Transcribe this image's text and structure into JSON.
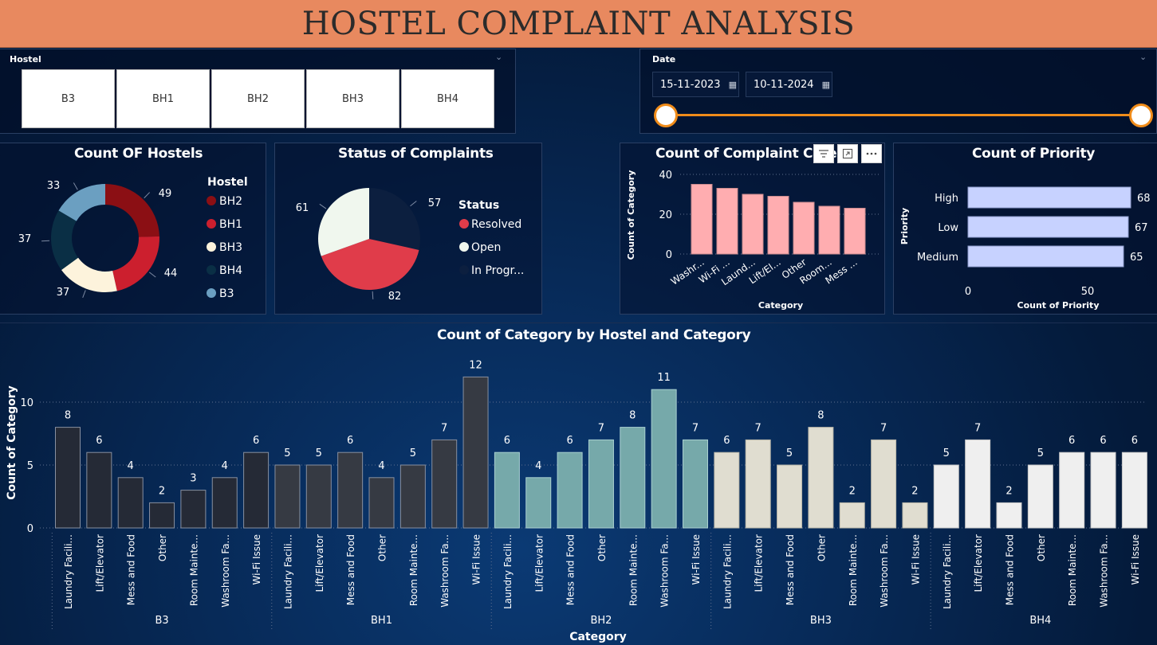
{
  "banner": {
    "title": "HOSTEL COMPLAINT ANALYSIS"
  },
  "hostel_slicer": {
    "title": "Hostel",
    "items": [
      "B3",
      "BH1",
      "BH2",
      "BH3",
      "BH4"
    ]
  },
  "date_slicer": {
    "title": "Date",
    "start": "15-11-2023",
    "end": "10-11-2024"
  },
  "colors": {
    "B3": "#6b9fc1",
    "BH2": "#8b0f14",
    "BH1": "#cc1f2e",
    "BH3": "#fdf3dc",
    "BH4": "#0a2f45",
    "resolved": "#e03c4a",
    "open": "#f0f7ee",
    "in_progress": "#0c1f3f",
    "category_bar": "#ffadb0",
    "priority_bar": "#c7d2ff",
    "bar_b3": "#252a36",
    "bar_bh1": "#363a43",
    "bar_bh2": "#76a9aa",
    "bar_bh3": "#e0ddd0",
    "bar_bh4": "#efefef",
    "accent": "#f08c1a"
  },
  "chart_data": [
    {
      "id": "count_of_hostels",
      "type": "pie",
      "variant": "donut",
      "title": "Count OF Hostels",
      "legend_title": "Hostel",
      "legend_position": "right",
      "slices": [
        {
          "label": "BH2",
          "value": 49
        },
        {
          "label": "BH1",
          "value": 44
        },
        {
          "label": "BH3",
          "value": 37
        },
        {
          "label": "BH4",
          "value": 37
        },
        {
          "label": "B3",
          "value": 33
        }
      ]
    },
    {
      "id": "status_of_complaints",
      "type": "pie",
      "title": "Status of Complaints",
      "legend_title": "Status",
      "legend_position": "right",
      "slices": [
        {
          "label": "Resolved",
          "value": 82
        },
        {
          "label": "Open",
          "value": 61
        },
        {
          "label": "In Progr...",
          "value": 57
        }
      ]
    },
    {
      "id": "count_of_complaint_category",
      "type": "bar",
      "title": "Count of Complaint Cate",
      "xlabel": "Category",
      "ylabel": "Count of Category",
      "ylim": [
        0,
        40
      ],
      "yticks": [
        0,
        20,
        40
      ],
      "grid": true,
      "categories": [
        "Washr...",
        "Wi-Fi ...",
        "Laund...",
        "Lift/El...",
        "Other",
        "Room...",
        "Mess ..."
      ],
      "values": [
        35,
        33,
        30,
        29,
        26,
        24,
        23
      ]
    },
    {
      "id": "count_of_priority",
      "type": "bar",
      "orientation": "horizontal",
      "title": "Count of Priority",
      "xlabel": "Count of Priority",
      "ylabel": "Priority",
      "xlim": [
        0,
        70
      ],
      "xticks": [
        0,
        50
      ],
      "categories": [
        "High",
        "Low",
        "Medium"
      ],
      "values": [
        68,
        67,
        65
      ]
    },
    {
      "id": "category_by_hostel",
      "type": "bar",
      "title": "Count of Category by Hostel and Category",
      "xlabel": "Category",
      "ylabel": "Count of Category",
      "ylim": [
        0,
        12.5
      ],
      "yticks": [
        0,
        5,
        10
      ],
      "grid": true,
      "groups": [
        {
          "name": "B3",
          "categories": [
            "Laundry Facili...",
            "Lift/Elevator",
            "Mess and Food",
            "Other",
            "Room Mainte...",
            "Washroom Fa...",
            "Wi-Fi Issue"
          ],
          "values": [
            8,
            6,
            4,
            2,
            3,
            4,
            6
          ]
        },
        {
          "name": "BH1",
          "categories": [
            "Laundry Facili...",
            "Lift/Elevator",
            "Mess and Food",
            "Other",
            "Room Mainte...",
            "Washroom Fa...",
            "Wi-Fi Issue"
          ],
          "values": [
            5,
            5,
            6,
            4,
            5,
            7,
            12
          ]
        },
        {
          "name": "BH2",
          "categories": [
            "Laundry Facili...",
            "Lift/Elevator",
            "Mess and Food",
            "Other",
            "Room Mainte...",
            "Washroom Fa...",
            "Wi-Fi Issue"
          ],
          "values": [
            6,
            4,
            6,
            7,
            8,
            11,
            7
          ]
        },
        {
          "name": "BH3",
          "categories": [
            "Laundry Facili...",
            "Lift/Elevator",
            "Mess and Food",
            "Other",
            "Room Mainte...",
            "Washroom Fa...",
            "Wi-Fi Issue"
          ],
          "values": [
            6,
            7,
            5,
            8,
            2,
            7,
            2
          ]
        },
        {
          "name": "BH4",
          "categories": [
            "Laundry Facili...",
            "Lift/Elevator",
            "Mess and Food",
            "Other",
            "Room Mainte...",
            "Washroom Fa...",
            "Wi-Fi Issue"
          ],
          "values": [
            5,
            7,
            2,
            5,
            6,
            6,
            6
          ]
        }
      ]
    }
  ]
}
